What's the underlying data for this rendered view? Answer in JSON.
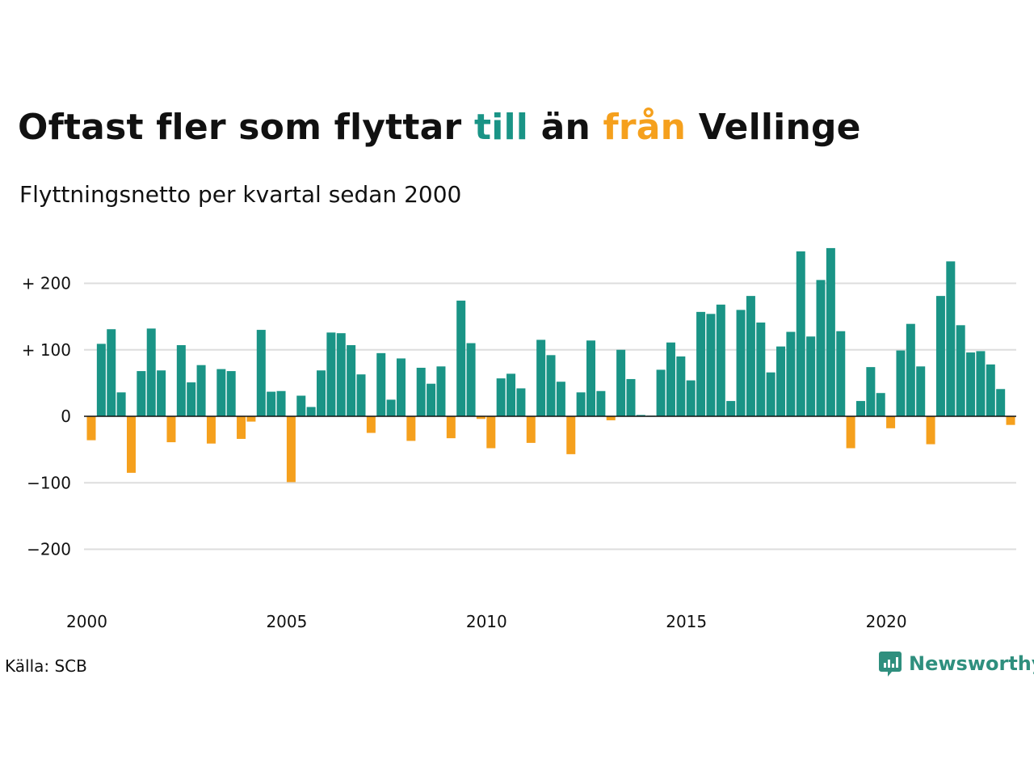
{
  "title": {
    "part1": "Oftast fler som flyttar ",
    "pos_word": "till",
    "part2": " än ",
    "neg_word": "från",
    "part3": " Vellinge"
  },
  "subtitle": "Flyttningsnetto per kvartal sedan 2000",
  "source": "Källa: SCB",
  "logo": {
    "text": "Newsworthy",
    "icon": "newsworthy-logo-icon"
  },
  "colors": {
    "positive": "#1a9486",
    "negative": "#f5a01d",
    "grid": "#dddddd",
    "zero_line": "#111111"
  },
  "chart_data": {
    "type": "bar",
    "title": "Oftast fler som flyttar till än från Vellinge",
    "subtitle": "Flyttningsnetto per kvartal sedan 2000",
    "x_start": "2000 Q1",
    "quarters_per_year": 4,
    "ylim": [
      -250,
      260
    ],
    "yticks": [
      -200,
      -100,
      0,
      100,
      200
    ],
    "ytick_labels": [
      "−200",
      "−100",
      "0",
      "+ 100",
      "+ 200"
    ],
    "xticks": [
      2000,
      2005,
      2010,
      2015,
      2020
    ],
    "xtick_labels": [
      "2000",
      "2005",
      "2010",
      "2015",
      "2020"
    ],
    "grid": true,
    "values": [
      -36,
      109,
      131,
      36,
      -85,
      68,
      132,
      69,
      -39,
      107,
      51,
      77,
      -41,
      71,
      68,
      -34,
      -8,
      130,
      37,
      38,
      -99,
      31,
      14,
      69,
      126,
      125,
      107,
      63,
      -25,
      95,
      25,
      87,
      -37,
      73,
      49,
      75,
      -33,
      174,
      110,
      -4,
      -48,
      57,
      64,
      42,
      -40,
      115,
      92,
      52,
      -57,
      36,
      114,
      38,
      -6,
      100,
      56,
      2,
      1,
      70,
      111,
      90,
      54,
      157,
      154,
      168,
      23,
      160,
      181,
      141,
      66,
      105,
      127,
      248,
      120,
      205,
      253,
      128,
      -48,
      23,
      74,
      35,
      -18,
      99,
      139,
      75,
      -42,
      181,
      233,
      137,
      96,
      98,
      78,
      41,
      -13
    ]
  }
}
